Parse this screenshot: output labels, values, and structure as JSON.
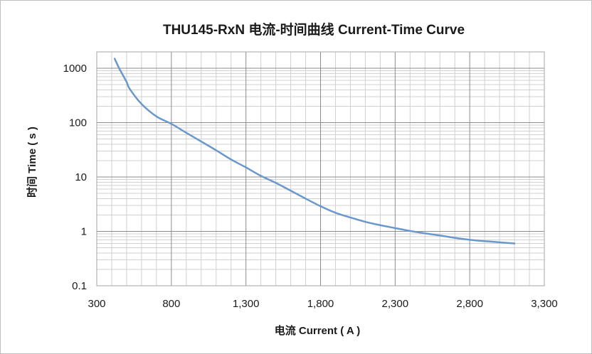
{
  "chart_data": {
    "type": "line",
    "title": "THU145-RxN 电流-时间曲线 Current-Time Curve",
    "xlabel": "电流 Current ( A )",
    "ylabel": "时间 Time ( s )",
    "xlim": [
      300,
      3300
    ],
    "ylim": [
      0.1,
      2000
    ],
    "yscale": "log",
    "x_ticks": [
      300,
      800,
      1300,
      1800,
      2300,
      2800,
      3300
    ],
    "x_tick_labels": [
      "300",
      "800",
      "1,300",
      "1,800",
      "2,300",
      "2,800",
      "3,300"
    ],
    "y_ticks": [
      0.1,
      1,
      10,
      100,
      1000
    ],
    "y_tick_labels": [
      "0.1",
      "1",
      "10",
      "100",
      "1000"
    ],
    "grid": true,
    "legend": "none",
    "line_color": "#6a98cc",
    "series": [
      {
        "x": [
          420,
          450,
          500,
          520,
          600,
          700,
          800,
          900,
          1000,
          1100,
          1200,
          1300,
          1400,
          1500,
          1600,
          1700,
          1800,
          1900,
          2000,
          2100,
          2200,
          2300,
          2400,
          2500,
          2600,
          2700,
          2800,
          2900,
          3000,
          3100
        ],
        "y": [
          1500,
          1000,
          560,
          420,
          220,
          130,
          95,
          65,
          45,
          31,
          21,
          15,
          10.5,
          7.8,
          5.6,
          4,
          2.9,
          2.2,
          1.8,
          1.5,
          1.3,
          1.15,
          1.02,
          0.92,
          0.84,
          0.76,
          0.7,
          0.66,
          0.63,
          0.6
        ]
      }
    ]
  }
}
